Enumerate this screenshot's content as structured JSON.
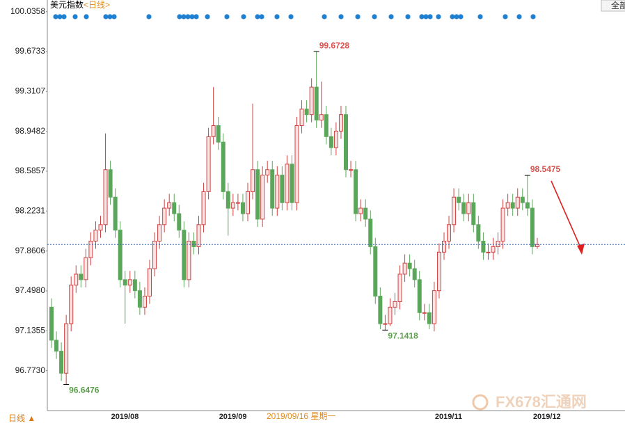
{
  "chart_data": {
    "type": "candlestick",
    "title": "美元指数",
    "subtitle": "<日线>",
    "period_button": "日线 ▲",
    "cursor_label": "2019/09/16 星期一",
    "button": "全部",
    "watermark": "FX678汇通网",
    "up_color": "#d04040",
    "down_color": "#5aa65a",
    "ylim": [
      96.41,
      100.11
    ],
    "yticks": [
      100.0358,
      99.6733,
      99.3107,
      98.9482,
      98.5857,
      98.2231,
      97.8606,
      {
        "value": 97.498,
        "label": "97.4980"
      },
      97.1355,
      {
        "value": 96.773,
        "label": "96.7730"
      }
    ],
    "grid": false,
    "categories": [
      null,
      null,
      null,
      null,
      null,
      null,
      null,
      null,
      null,
      null,
      null,
      null,
      "2019/08",
      null,
      null,
      null,
      null,
      null,
      null,
      null,
      null,
      null,
      null,
      null,
      null,
      null,
      null,
      null,
      null,
      null,
      null,
      null,
      null,
      null,
      "2019/09",
      null,
      null,
      null,
      null,
      null,
      null,
      null,
      null,
      null,
      null,
      null,
      null,
      null,
      null,
      null,
      null,
      null,
      null,
      null,
      null,
      null,
      null,
      null,
      null,
      null,
      null,
      null,
      null,
      null,
      null,
      null,
      null,
      null,
      null,
      null,
      null,
      null,
      null,
      null,
      null,
      null,
      null,
      null,
      "2019/11",
      null,
      null,
      null,
      null,
      null,
      null,
      null,
      null,
      null,
      null,
      null,
      null,
      null,
      null,
      null,
      null,
      null,
      null,
      null,
      "2019/12",
      null
    ],
    "open": [
      97.35,
      97.05,
      96.95,
      96.75,
      97.2,
      97.55,
      97.65,
      97.6,
      97.8,
      97.95,
      98.05,
      98.1,
      98.6,
      98.35,
      98.05,
      97.6,
      97.55,
      97.6,
      97.5,
      97.35,
      97.45,
      97.7,
      97.95,
      98.1,
      98.25,
      98.3,
      98.2,
      98.05,
      97.6,
      97.95,
      97.9,
      98.1,
      98.4,
      98.9,
      99.0,
      98.85,
      98.4,
      98.25,
      98.3,
      98.3,
      98.2,
      98.4,
      98.6,
      98.15,
      98.55,
      98.6,
      98.25,
      98.55,
      98.3,
      98.65,
      98.3,
      99.0,
      99.15,
      99.1,
      99.35,
      99.05,
      99.1,
      98.9,
      98.8,
      98.95,
      99.1,
      98.6,
      98.6,
      98.2,
      98.25,
      98.15,
      97.9,
      97.45,
      97.2,
      97.2,
      97.35,
      97.4,
      97.65,
      97.75,
      97.7,
      97.6,
      97.3,
      97.3,
      97.2,
      97.5,
      97.85,
      97.95,
      98.1,
      98.35,
      98.3,
      98.2,
      98.3,
      98.1,
      97.95,
      97.85,
      97.85,
      97.9,
      97.95,
      98.25,
      98.3,
      98.25,
      98.35,
      98.3,
      98.25,
      97.9
    ],
    "high": [
      97.43,
      97.13,
      97.03,
      97.28,
      97.63,
      97.73,
      97.73,
      97.88,
      98.03,
      98.13,
      98.18,
      98.93,
      98.68,
      98.43,
      98.13,
      97.68,
      97.68,
      97.68,
      97.58,
      97.53,
      97.78,
      98.03,
      98.18,
      98.33,
      98.38,
      98.38,
      98.28,
      98.13,
      98.03,
      98.03,
      98.18,
      98.48,
      98.98,
      99.35,
      99.08,
      98.93,
      98.48,
      98.38,
      98.38,
      98.38,
      98.48,
      99.2,
      98.68,
      98.63,
      98.68,
      98.68,
      98.63,
      98.63,
      98.73,
      98.73,
      99.08,
      99.23,
      99.23,
      99.43,
      99.6728,
      99.4,
      99.18,
      98.98,
      99.03,
      99.18,
      99.18,
      98.68,
      98.68,
      98.33,
      98.33,
      98.23,
      97.98,
      97.53,
      97.28,
      97.43,
      97.48,
      97.73,
      97.83,
      97.83,
      97.78,
      97.68,
      97.38,
      97.38,
      97.58,
      97.93,
      98.03,
      98.18,
      98.43,
      98.43,
      98.38,
      98.38,
      98.38,
      98.18,
      98.03,
      97.93,
      97.98,
      98.03,
      98.33,
      98.38,
      98.38,
      98.43,
      98.43,
      98.5475,
      98.33,
      97.98
    ],
    "low": [
      96.98,
      96.88,
      96.68,
      96.6476,
      97.13,
      97.48,
      97.53,
      97.53,
      97.73,
      97.88,
      97.98,
      98.03,
      98.28,
      97.98,
      97.53,
      97.2,
      97.48,
      97.43,
      97.28,
      97.28,
      97.38,
      97.63,
      97.88,
      98.03,
      98.18,
      98.13,
      97.98,
      97.53,
      97.53,
      97.83,
      97.83,
      98.03,
      98.33,
      98.83,
      98.78,
      98.33,
      98.0,
      98.18,
      98.23,
      98.13,
      98.13,
      98.33,
      98.08,
      98.08,
      98.48,
      98.18,
      98.18,
      98.23,
      98.23,
      98.23,
      98.23,
      98.93,
      99.03,
      99.03,
      98.98,
      98.98,
      98.83,
      98.73,
      98.73,
      98.88,
      98.53,
      98.53,
      98.13,
      98.13,
      98.08,
      97.83,
      97.38,
      97.15,
      97.1418,
      97.18,
      97.28,
      97.33,
      97.58,
      97.63,
      97.53,
      97.23,
      97.23,
      97.15,
      97.13,
      97.43,
      97.78,
      97.88,
      98.03,
      98.23,
      98.13,
      98.13,
      98.03,
      97.88,
      97.78,
      97.78,
      97.78,
      97.83,
      97.88,
      98.18,
      98.18,
      98.18,
      98.23,
      98.18,
      97.83,
      97.88
    ],
    "close": [
      97.05,
      96.95,
      96.75,
      97.2,
      97.55,
      97.65,
      97.6,
      97.8,
      97.95,
      98.05,
      98.1,
      98.6,
      98.35,
      98.05,
      97.6,
      97.55,
      97.6,
      97.5,
      97.35,
      97.45,
      97.7,
      97.95,
      98.1,
      98.25,
      98.3,
      98.2,
      98.05,
      97.6,
      97.95,
      97.9,
      98.1,
      98.4,
      98.9,
      99.0,
      98.85,
      98.4,
      98.25,
      98.3,
      98.3,
      98.2,
      98.4,
      98.6,
      98.15,
      98.55,
      98.6,
      98.25,
      98.55,
      98.3,
      98.65,
      98.3,
      99.0,
      99.15,
      99.1,
      99.35,
      99.05,
      99.1,
      98.9,
      98.8,
      98.95,
      99.1,
      98.6,
      98.6,
      98.2,
      98.25,
      98.15,
      97.9,
      97.45,
      97.2,
      97.2,
      97.35,
      97.4,
      97.65,
      97.75,
      97.7,
      97.6,
      97.3,
      97.3,
      97.2,
      97.5,
      97.85,
      97.95,
      98.1,
      98.35,
      98.3,
      98.2,
      98.3,
      98.1,
      97.95,
      97.85,
      97.85,
      97.9,
      97.95,
      98.25,
      98.3,
      98.25,
      98.35,
      98.3,
      98.25,
      97.9,
      97.92
    ],
    "annotations": [
      {
        "value": 99.6728,
        "color": "#d9534f"
      },
      {
        "value": 98.5475,
        "color": "#d9534f"
      },
      {
        "value": 97.1418,
        "color": "#5a9e4a"
      },
      {
        "value": 96.6476,
        "color": "#5a9e4a"
      }
    ]
  }
}
